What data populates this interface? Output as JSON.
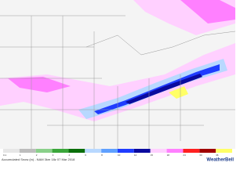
{
  "map": {
    "caption": "Accumulated Snow (in) - NAM 3km 18z 07 Mar 2018",
    "brand": "WeatherBell",
    "legend": [
      {
        "label": "0.1",
        "color": "#e6e6e6"
      },
      {
        "label": "1",
        "color": "#bdbdbd"
      },
      {
        "label": "2",
        "color": "#8ad08a"
      },
      {
        "label": "3",
        "color": "#3aa63a"
      },
      {
        "label": "4",
        "color": "#0a6e0a"
      },
      {
        "label": "6",
        "color": "#b8d8ff"
      },
      {
        "label": "8",
        "color": "#5fa0ff"
      },
      {
        "label": "10",
        "color": "#1f3cff"
      },
      {
        "label": "12",
        "color": "#0a0a9e"
      },
      {
        "label": "15",
        "color": "#ffd0ff"
      },
      {
        "label": "18",
        "color": "#ff80ff"
      },
      {
        "label": "24",
        "color": "#ff2020"
      },
      {
        "label": "30",
        "color": "#a00000"
      },
      {
        "label": "36",
        "color": "#ffff66"
      }
    ]
  }
}
